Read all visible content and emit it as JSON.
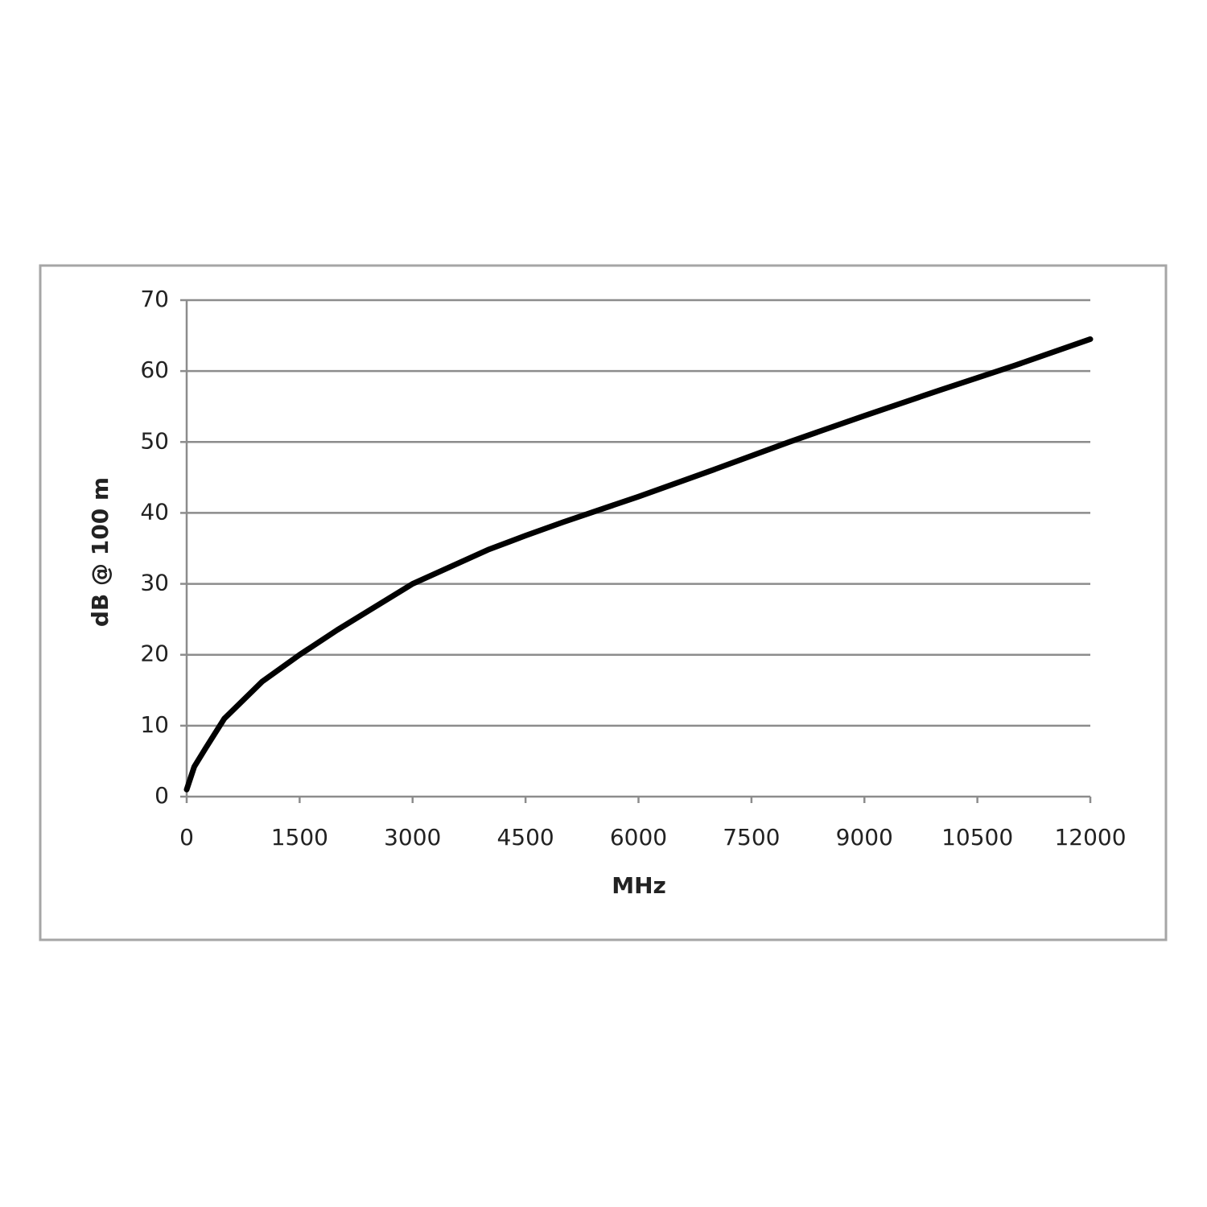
{
  "chart_data": {
    "type": "line",
    "x": [
      0,
      100,
      250,
      500,
      1000,
      1500,
      2000,
      3000,
      4000,
      4500,
      5000,
      6000,
      7000,
      8000,
      9000,
      10000,
      11000,
      12000
    ],
    "series": [
      {
        "color": "#000000",
        "values": [
          1,
          4.2,
          6.8,
          11,
          16.2,
          20,
          23.5,
          30,
          34.8,
          36.8,
          38.7,
          42.3,
          46.1,
          50,
          53.7,
          57.3,
          60.8,
          64.5
        ]
      }
    ],
    "xlabel": "MHz",
    "ylabel": "dB @ 100 m",
    "xlim": [
      0,
      12000
    ],
    "xticks": [
      0,
      1500,
      3000,
      4500,
      6000,
      7500,
      9000,
      10500,
      12000
    ],
    "ylim": [
      0,
      70
    ],
    "yticks": [
      0,
      10,
      20,
      30,
      40,
      50,
      60,
      70
    ],
    "grid": true
  }
}
